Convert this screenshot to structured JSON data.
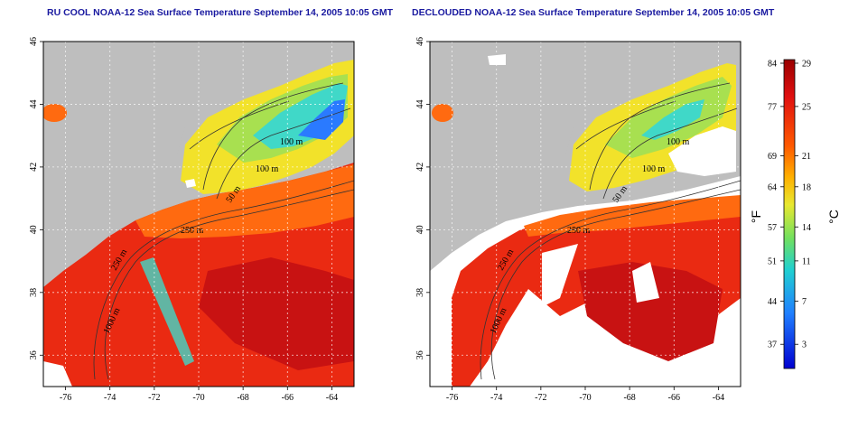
{
  "panels": [
    {
      "title": "RU COOL NOAA-12 Sea Surface Temperature September 14, 2005 10:05 GMT",
      "contour_labels": [
        "100 m",
        "100 m",
        "50 m",
        "250 m",
        "250 m",
        "1000 m"
      ]
    },
    {
      "title": "DECLOUDED NOAA-12 Sea Surface Temperature September 14, 2005 10:05 GMT",
      "contour_labels": [
        "100 m",
        "100 m",
        "50 m",
        "250 m",
        "250 m",
        "1000 m"
      ]
    }
  ],
  "axes": {
    "x_ticks": [
      "-76",
      "-74",
      "-72",
      "-70",
      "-68",
      "-66",
      "-64"
    ],
    "y_ticks": [
      "36",
      "38",
      "40",
      "42",
      "44",
      "46"
    ]
  },
  "colorbar": {
    "fahrenheit_ticks": [
      "84",
      "77",
      "69",
      "64",
      "57",
      "51",
      "44",
      "37"
    ],
    "celsius_ticks": [
      "29",
      "25",
      "21",
      "18",
      "14",
      "11",
      "7",
      "3"
    ],
    "fahrenheit_unit": "°F",
    "celsius_unit": "°C",
    "colors": [
      "#9a0000",
      "#e01010",
      "#ff5a00",
      "#ffb000",
      "#e8e830",
      "#70e060",
      "#20d0d0",
      "#2080ff",
      "#0000d0"
    ]
  },
  "palette": {
    "land": "#bebebe",
    "cloud": "#ffffff",
    "warm_dark": "#c81212",
    "warm": "#ea2a12",
    "orange": "#ff6a10",
    "yellow": "#f2e22a",
    "green": "#a8e050",
    "cyan": "#40d8c8",
    "blue": "#2a7aff"
  }
}
